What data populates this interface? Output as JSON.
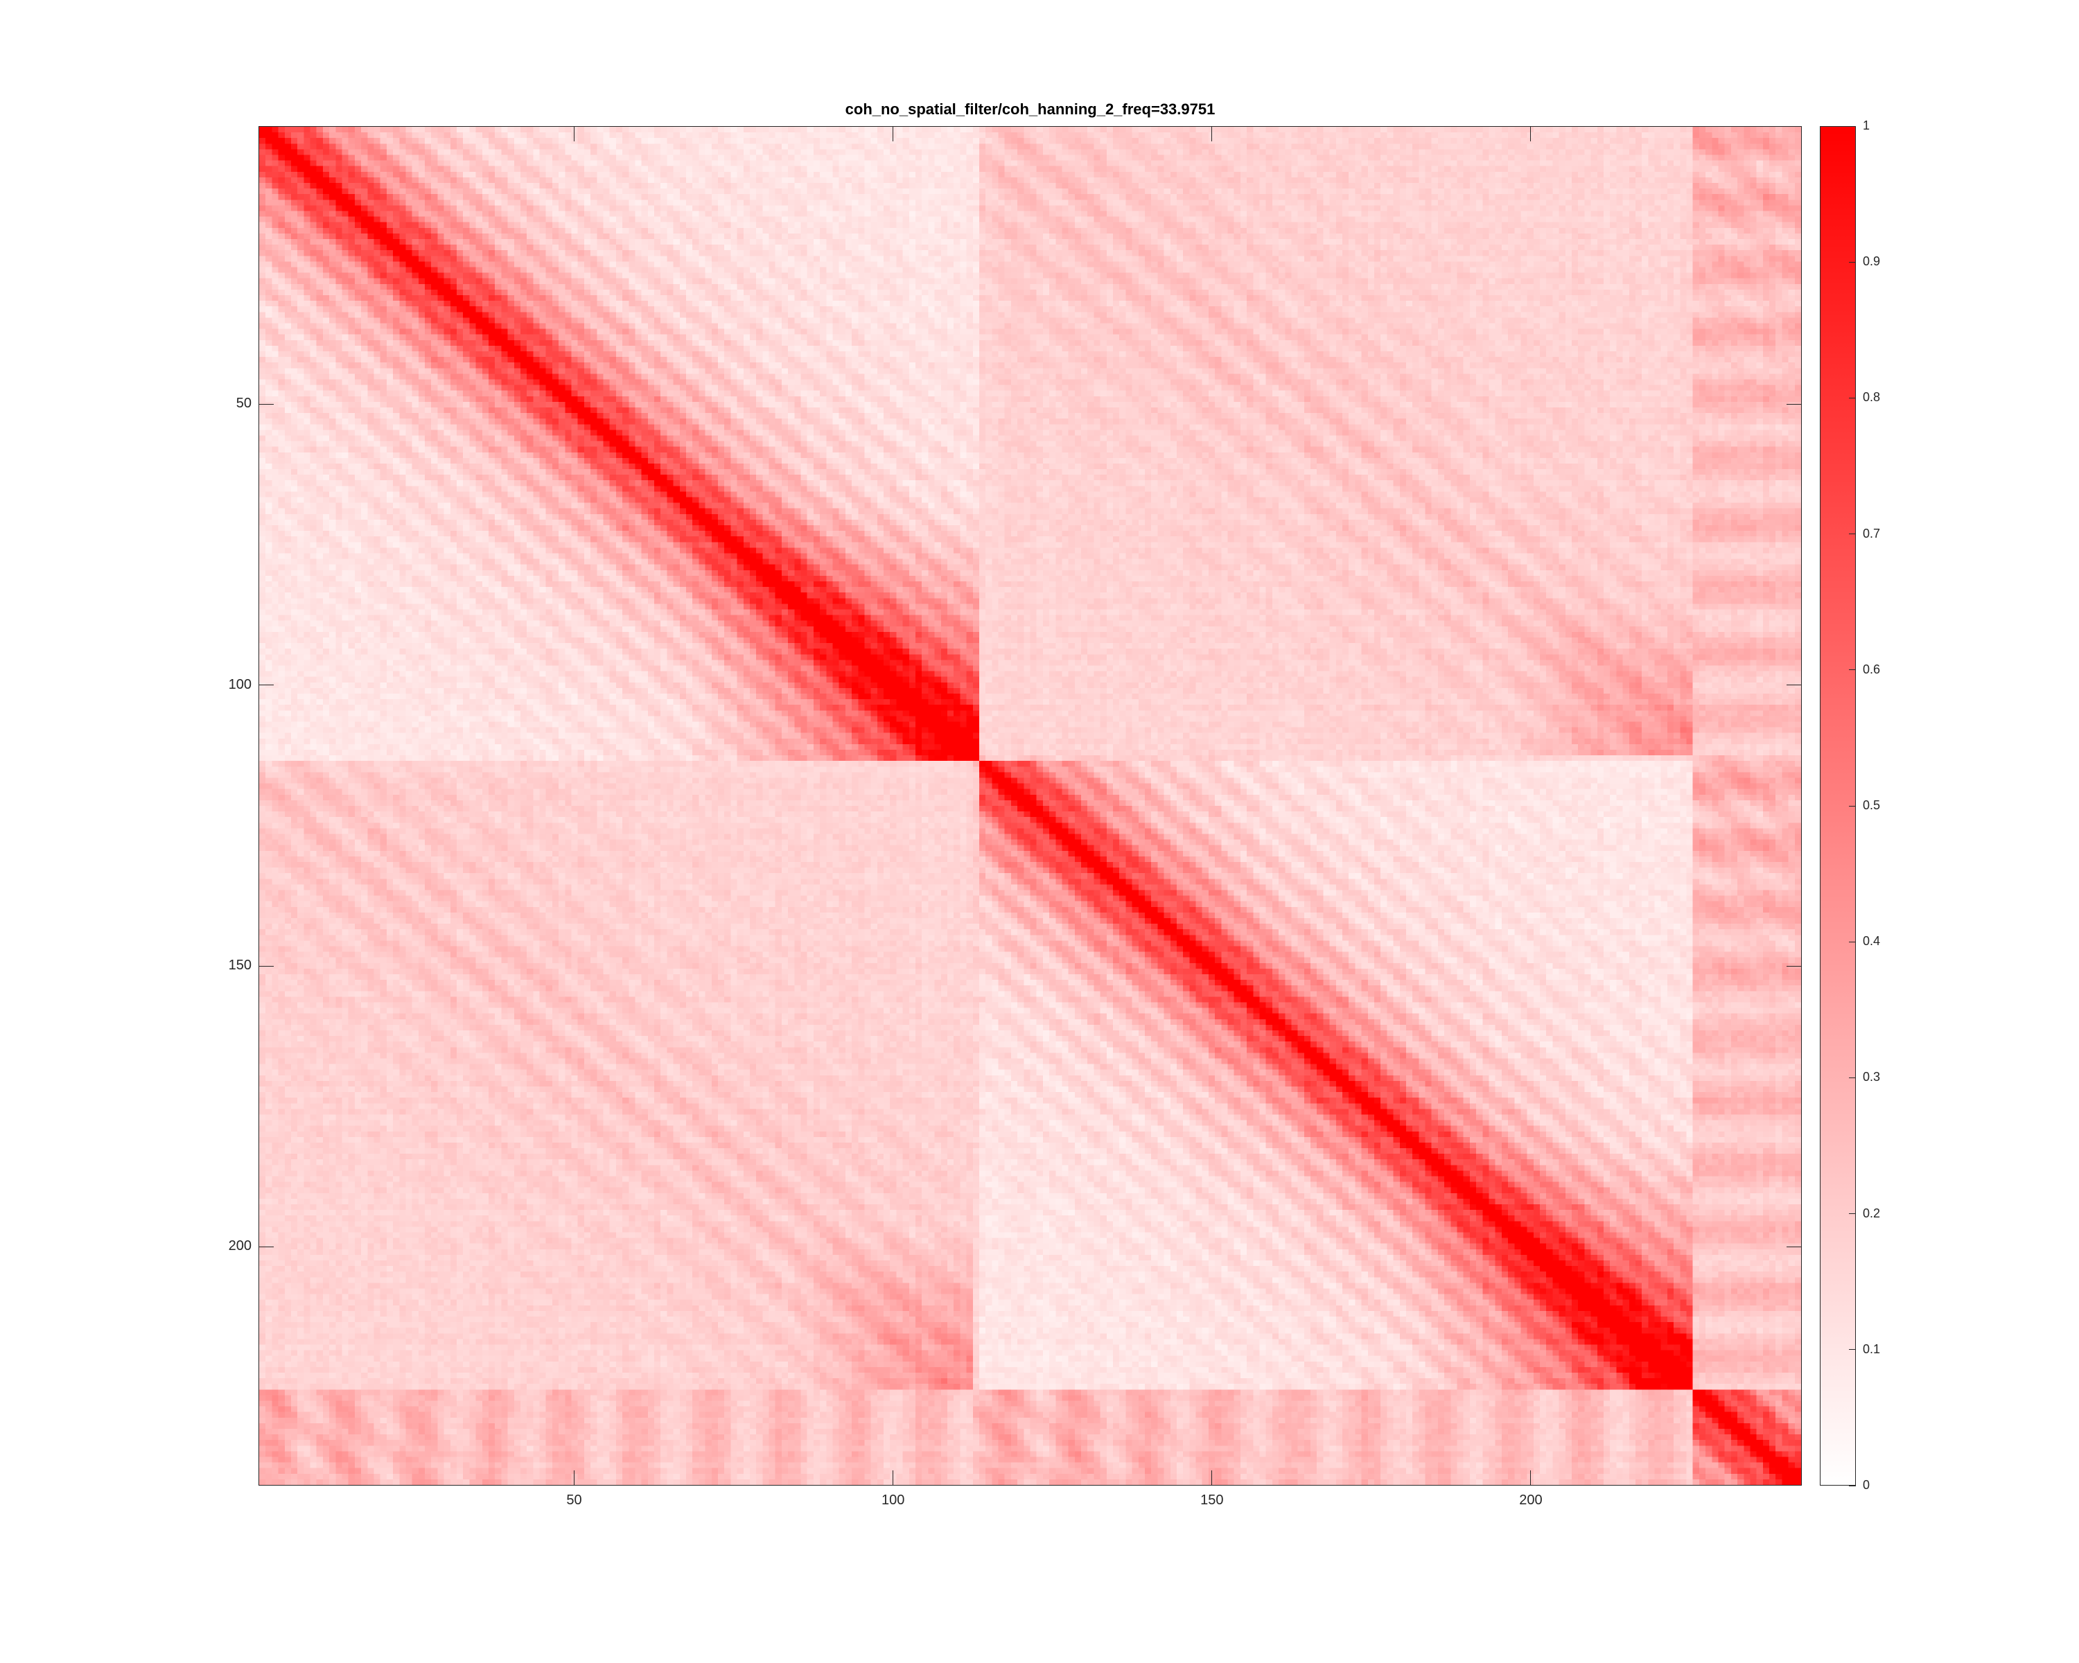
{
  "chart_data": {
    "type": "heatmap",
    "title": "coh_no_spatial_filter/coh_hanning_2_freq=33.9751",
    "xlabel": "",
    "ylabel": "",
    "n_rows": 242,
    "n_cols": 242,
    "xlim": [
      0.5,
      242.5
    ],
    "ylim": [
      0.5,
      242.5
    ],
    "y_direction": "reverse",
    "xticks": [
      50,
      100,
      150,
      200
    ],
    "yticks": [
      50,
      100,
      150,
      200
    ],
    "x_tick_labels": [
      "50",
      "100",
      "150",
      "200"
    ],
    "y_tick_labels": [
      "50",
      "100",
      "150",
      "200"
    ],
    "colorbar": {
      "range": [
        0,
        1
      ],
      "ticks": [
        0,
        0.1,
        0.2,
        0.3,
        0.4,
        0.5,
        0.6,
        0.7,
        0.8,
        0.9,
        1
      ],
      "tick_labels": [
        "0",
        "0.1",
        "0.2",
        "0.3",
        "0.4",
        "0.5",
        "0.6",
        "0.7",
        "0.8",
        "0.9",
        "1"
      ],
      "colormap": "white-to-red",
      "color_low": "#ffffff",
      "color_high": "#ff0000"
    },
    "structure": {
      "diagonal_value": 1,
      "block_boundaries": [
        113,
        225
      ],
      "strong_blocks": [
        {
          "rows": [
            1,
            113
          ],
          "cols": [
            1,
            113
          ],
          "peak": 0.9
        },
        {
          "rows": [
            113,
            225
          ],
          "cols": [
            113,
            225
          ],
          "peak": 0.9
        },
        {
          "rows": [
            225,
            242
          ],
          "cols": [
            225,
            242
          ],
          "peak": 0.9
        }
      ],
      "off_diagonal_level": 0.15
    },
    "grid": false
  }
}
